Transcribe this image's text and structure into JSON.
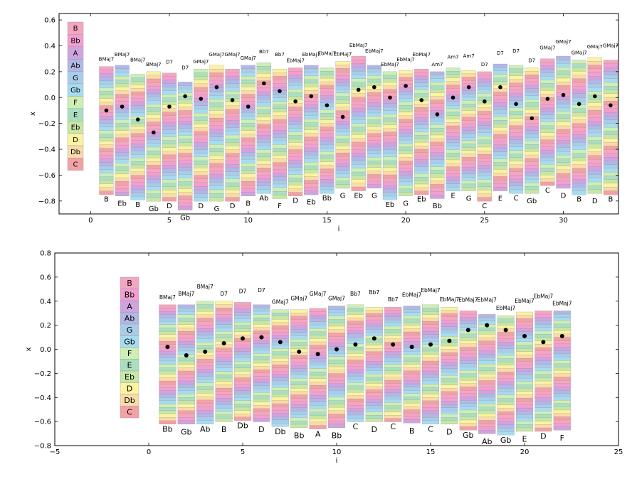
{
  "note_order_top_to_bottom": [
    "B",
    "Bb",
    "A",
    "Ab",
    "G",
    "Gb",
    "F",
    "E",
    "Eb",
    "D",
    "Db",
    "C"
  ],
  "note_colors": {
    "B": "#f4a6bf",
    "Bb": "#f29fd0",
    "A": "#cfa3de",
    "Ab": "#b2b7e6",
    "G": "#a9cce9",
    "Gb": "#a6dcf2",
    "F": "#cfeeb5",
    "E": "#a9dfc0",
    "Eb": "#c8e6a4",
    "D": "#fbf3a2",
    "Db": "#f9dba8",
    "C": "#f2a1a6"
  },
  "chart_data": [
    {
      "type": "scatter",
      "title": "",
      "xlabel": "i",
      "ylabel": "x",
      "xlim": [
        -2,
        33.5
      ],
      "ylim": [
        -0.9,
        0.65
      ],
      "xticks": [
        "0",
        "5",
        "10",
        "15",
        "20",
        "25",
        "30"
      ],
      "yticks": [
        "0.6",
        "0.4",
        "0.2",
        "0.0",
        "−0.2",
        "−0.4",
        "−0.6",
        "−0.8"
      ],
      "ytick_values": [
        0.6,
        0.4,
        0.2,
        0.0,
        -0.2,
        -0.4,
        -0.6,
        -0.8
      ],
      "xtick_values": [
        0,
        5,
        10,
        15,
        20,
        25,
        30
      ],
      "legend": [
        "B",
        "Bb",
        "A",
        "Ab",
        "G",
        "Gb",
        "F",
        "E",
        "Eb",
        "D",
        "Db",
        "C"
      ],
      "legend_placement": "left",
      "chords": [
        "BMaj7",
        "BMaj7",
        "BMaj7",
        "BMaj7",
        "D7",
        "D7",
        "GMaj7",
        "GMaj7",
        "GMaj7",
        "GMaj7",
        "Bb7",
        "Bb7",
        "EbMaj7",
        "EbMaj7",
        "EbMaj7",
        "EbMaj7",
        "EbMaj7",
        "EbMaj7",
        "EbMaj7",
        "EbMaj7",
        "EbMaj7",
        "Am7",
        "Am7",
        "Am7",
        "D7",
        "D7",
        "D7",
        "D7",
        "GMaj7",
        "GMaj7",
        "GMaj7",
        "GMaj7",
        "GMaj7"
      ],
      "notes": [
        "B",
        "Eb",
        "B",
        "Gb",
        "D",
        "Gb",
        "D",
        "G",
        "D",
        "B",
        "Ab",
        "F",
        "D",
        "Eb",
        "Bb",
        "G",
        "Eb",
        "G",
        "Eb",
        "G",
        "Eb",
        "Bb",
        "E",
        "G",
        "C",
        "E",
        "C",
        "Gb",
        "C",
        "D",
        "B",
        "D",
        "B"
      ],
      "x": [
        1,
        2,
        3,
        4,
        5,
        6,
        7,
        8,
        9,
        10,
        11,
        12,
        13,
        14,
        15,
        16,
        17,
        18,
        19,
        20,
        21,
        22,
        23,
        24,
        25,
        26,
        27,
        28,
        29,
        30,
        31,
        32,
        33
      ],
      "y": [
        -0.1,
        -0.07,
        -0.17,
        -0.27,
        -0.07,
        0.01,
        -0.01,
        0.08,
        -0.02,
        -0.07,
        0.11,
        0.05,
        -0.03,
        0.01,
        -0.06,
        -0.15,
        0.06,
        0.08,
        0.0,
        0.09,
        -0.02,
        -0.13,
        0.0,
        0.08,
        -0.03,
        0.08,
        -0.05,
        -0.16,
        -0.01,
        0.02,
        -0.05,
        0.01,
        -0.06
      ],
      "column_top": [
        0.24,
        0.25,
        0.18,
        0.2,
        0.19,
        0.12,
        0.22,
        0.25,
        0.22,
        0.25,
        0.27,
        0.22,
        0.23,
        0.25,
        0.23,
        0.28,
        0.32,
        0.25,
        0.2,
        0.21,
        0.22,
        0.2,
        0.23,
        0.21,
        0.2,
        0.26,
        0.25,
        0.23,
        0.3,
        0.32,
        0.29,
        0.31,
        0.29
      ],
      "column_bottom": [
        -0.75,
        -0.76,
        -0.79,
        -0.8,
        -0.8,
        -0.87,
        -0.8,
        -0.8,
        -0.8,
        -0.76,
        -0.74,
        -0.78,
        -0.76,
        -0.75,
        -0.74,
        -0.7,
        -0.72,
        -0.7,
        -0.79,
        -0.76,
        -0.75,
        -0.78,
        -0.72,
        -0.72,
        -0.8,
        -0.72,
        -0.74,
        -0.74,
        -0.68,
        -0.7,
        -0.75,
        -0.74,
        -0.75
      ]
    },
    {
      "type": "scatter",
      "title": "",
      "xlabel": "i",
      "ylabel": "x",
      "xlim": [
        -5,
        25
      ],
      "ylim": [
        -0.8,
        0.8
      ],
      "xticks": [
        "−5",
        "0",
        "5",
        "10",
        "15",
        "20",
        "25"
      ],
      "xtick_values": [
        -5,
        0,
        5,
        10,
        15,
        20,
        25
      ],
      "yticks": [
        "0.8",
        "0.6",
        "0.4",
        "0.2",
        "0.0",
        "−0.2",
        "−0.4",
        "−0.6",
        "−0.8"
      ],
      "ytick_values": [
        0.8,
        0.6,
        0.4,
        0.2,
        0.0,
        -0.2,
        -0.4,
        -0.6,
        -0.8
      ],
      "legend": [
        "B",
        "Bb",
        "A",
        "Ab",
        "G",
        "Gb",
        "F",
        "E",
        "Eb",
        "D",
        "Db",
        "C"
      ],
      "legend_placement": "left",
      "chords": [
        "BMaj7",
        "BMaj7",
        "BMaj7",
        "D7",
        "D7",
        "D7",
        "GMaj7",
        "GMaj7",
        "GMaj7",
        "GMaj7",
        "Bb7",
        "Bb7",
        "Bb7",
        "EbMaj7",
        "EbMaj7",
        "EbMaj7",
        "EbMaj7",
        "EbMaj7",
        "EbMaj7",
        "EbMaj7",
        "EbMaj7",
        "EbMaj7"
      ],
      "notes": [
        "Bb",
        "Gb",
        "Ab",
        "B",
        "Db",
        "D",
        "Db",
        "Bb",
        "A",
        "Bb",
        "C",
        "D",
        "C",
        "B",
        "C",
        "D",
        "Gb",
        "Ab",
        "Gb",
        "E",
        "D",
        "F"
      ],
      "x": [
        1,
        2,
        3,
        4,
        5,
        6,
        7,
        8,
        9,
        10,
        11,
        12,
        13,
        14,
        15,
        16,
        17,
        18,
        19,
        20,
        21,
        22
      ],
      "y": [
        0.02,
        -0.05,
        -0.02,
        0.05,
        0.09,
        0.1,
        0.06,
        -0.02,
        -0.04,
        0.0,
        0.04,
        0.09,
        0.04,
        0.02,
        0.04,
        0.07,
        0.16,
        0.2,
        0.16,
        0.11,
        0.06,
        0.11
      ],
      "column_top": [
        0.37,
        0.37,
        0.4,
        0.4,
        0.39,
        0.37,
        0.33,
        0.33,
        0.34,
        0.36,
        0.37,
        0.35,
        0.35,
        0.36,
        0.37,
        0.35,
        0.32,
        0.29,
        0.28,
        0.31,
        0.32,
        0.32
      ],
      "column_bottom": [
        -0.62,
        -0.62,
        -0.62,
        -0.6,
        -0.59,
        -0.6,
        -0.64,
        -0.65,
        -0.66,
        -0.65,
        -0.6,
        -0.6,
        -0.6,
        -0.61,
        -0.62,
        -0.62,
        -0.67,
        -0.7,
        -0.71,
        -0.68,
        -0.68,
        -0.67
      ]
    }
  ]
}
